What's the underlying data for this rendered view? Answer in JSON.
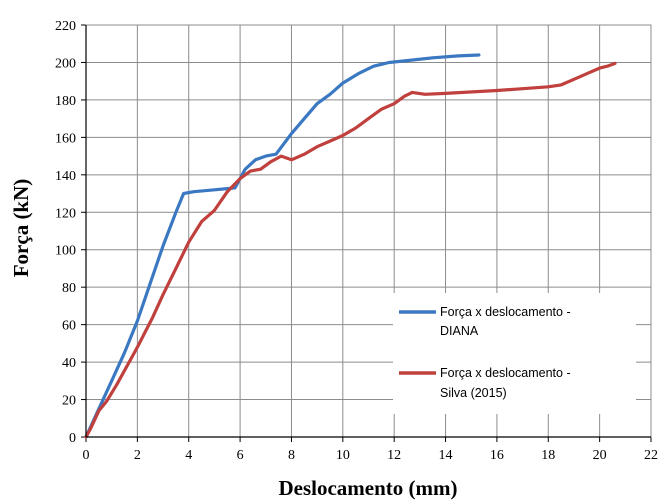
{
  "chart_data": {
    "type": "line",
    "xlabel": "Deslocamento (mm)",
    "ylabel": "Força (kN)",
    "xlim": [
      0,
      22
    ],
    "ylim": [
      0,
      220
    ],
    "x_ticks": [
      "0",
      "2",
      "4",
      "6",
      "8",
      "10",
      "12",
      "14",
      "16",
      "18",
      "20",
      "22"
    ],
    "y_ticks": [
      "0",
      "20",
      "40",
      "60",
      "80",
      "100",
      "120",
      "140",
      "160",
      "180",
      "200",
      "220"
    ],
    "grid": true,
    "legend_position": "lower-right",
    "series": [
      {
        "name_lines": [
          "Força x deslocamento -",
          "DIANA"
        ],
        "color": "#3b78c2",
        "points": [
          [
            0,
            0
          ],
          [
            0.2,
            6
          ],
          [
            0.5,
            15
          ],
          [
            1.0,
            30
          ],
          [
            1.5,
            45
          ],
          [
            2.0,
            62
          ],
          [
            2.5,
            82
          ],
          [
            3.0,
            102
          ],
          [
            3.5,
            120
          ],
          [
            3.8,
            130
          ],
          [
            4.2,
            131
          ],
          [
            5.0,
            132
          ],
          [
            5.8,
            133
          ],
          [
            6.2,
            143
          ],
          [
            6.6,
            148
          ],
          [
            7.0,
            150
          ],
          [
            7.4,
            151
          ],
          [
            8.0,
            162
          ],
          [
            8.5,
            170
          ],
          [
            9.0,
            178
          ],
          [
            9.5,
            183
          ],
          [
            10.0,
            189
          ],
          [
            10.6,
            194
          ],
          [
            11.2,
            198
          ],
          [
            11.8,
            200
          ],
          [
            12.5,
            201
          ],
          [
            13.5,
            202.5
          ],
          [
            14.5,
            203.5
          ],
          [
            15.3,
            204
          ]
        ]
      },
      {
        "name_lines": [
          "Força x deslocamento -",
          "Silva (2015)"
        ],
        "color": "#c0403d",
        "points": [
          [
            0,
            0
          ],
          [
            0.2,
            5
          ],
          [
            0.5,
            14
          ],
          [
            0.8,
            19
          ],
          [
            1.2,
            28
          ],
          [
            2.0,
            48
          ],
          [
            2.6,
            64
          ],
          [
            3.0,
            76
          ],
          [
            3.5,
            90
          ],
          [
            4.0,
            104
          ],
          [
            4.5,
            115
          ],
          [
            5.0,
            121
          ],
          [
            5.5,
            131
          ],
          [
            6.0,
            138
          ],
          [
            6.4,
            142
          ],
          [
            6.8,
            143
          ],
          [
            7.2,
            147
          ],
          [
            7.6,
            150
          ],
          [
            8.0,
            148
          ],
          [
            8.5,
            151
          ],
          [
            9.0,
            155
          ],
          [
            9.5,
            158
          ],
          [
            10.0,
            161
          ],
          [
            10.5,
            165
          ],
          [
            11.0,
            170
          ],
          [
            11.5,
            175
          ],
          [
            12.0,
            178
          ],
          [
            12.4,
            182
          ],
          [
            12.7,
            184
          ],
          [
            13.2,
            183
          ],
          [
            14.0,
            183.5
          ],
          [
            16.0,
            185
          ],
          [
            17.0,
            186
          ],
          [
            18.0,
            187
          ],
          [
            18.5,
            188
          ],
          [
            19.0,
            191
          ],
          [
            19.5,
            194
          ],
          [
            20.0,
            197
          ],
          [
            20.3,
            198
          ],
          [
            20.6,
            199.5
          ]
        ]
      }
    ]
  }
}
